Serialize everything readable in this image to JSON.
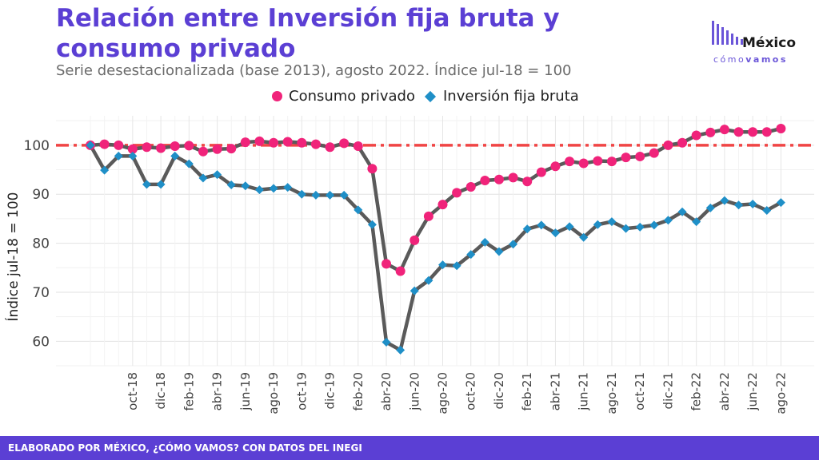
{
  "header": {
    "title": "Relación entre Inversión fija bruta y consumo privado",
    "subtitle": "Serie desestacionalizada (base 2013), agosto 2022. Índice jul-18 = 100"
  },
  "logo": {
    "main": "México",
    "sub_light": "cómo",
    "sub_bold": "vamos"
  },
  "footer": {
    "text": "ELABORADO POR MÉXICO, ¿CÓMO VAMOS? CON DATOS DEL INEGI"
  },
  "colors": {
    "title": "#5b3fd4",
    "consumo": "#f0237a",
    "inversion": "#1f8fc7",
    "line": "#5a5a5a",
    "reference": "#f04545",
    "footer": "#5b3fd4"
  },
  "chart_data": {
    "type": "line",
    "ylabel": "Índice jul-18 = 100",
    "ylim": [
      55,
      106
    ],
    "yticks": [
      60,
      70,
      80,
      90,
      100
    ],
    "reference_line": 100,
    "grid": true,
    "legend_position": "top",
    "x": [
      "jul-18",
      "ago-18",
      "sep-18",
      "oct-18",
      "nov-18",
      "dic-18",
      "ene-19",
      "feb-19",
      "mar-19",
      "abr-19",
      "may-19",
      "jun-19",
      "jul-19",
      "ago-19",
      "sep-19",
      "oct-19",
      "nov-19",
      "dic-19",
      "ene-20",
      "feb-20",
      "mar-20",
      "abr-20",
      "may-20",
      "jun-20",
      "jul-20",
      "ago-20",
      "sep-20",
      "oct-20",
      "nov-20",
      "dic-20",
      "ene-21",
      "feb-21",
      "mar-21",
      "abr-21",
      "may-21",
      "jun-21",
      "jul-21",
      "ago-21",
      "sep-21",
      "oct-21",
      "nov-21",
      "dic-21",
      "ene-22",
      "feb-22",
      "mar-22",
      "abr-22",
      "may-22",
      "jun-22",
      "jul-22",
      "ago-22"
    ],
    "x_tick_labels": [
      "oct-18",
      "dic-18",
      "feb-19",
      "abr-19",
      "jun-19",
      "ago-19",
      "oct-19",
      "dic-19",
      "feb-20",
      "abr-20",
      "jun-20",
      "ago-20",
      "oct-20",
      "dic-20",
      "feb-21",
      "abr-21",
      "jun-21",
      "ago-21",
      "oct-21",
      "dic-21",
      "feb-22",
      "abr-22",
      "jun-22",
      "ago-22"
    ],
    "series": [
      {
        "name": "Consumo privado",
        "marker": "circle",
        "values": [
          100.0,
          100.2,
          100.0,
          99.2,
          99.6,
          99.4,
          99.8,
          99.9,
          98.7,
          99.2,
          99.3,
          100.6,
          100.8,
          100.5,
          100.7,
          100.5,
          100.2,
          99.6,
          100.4,
          99.8,
          95.2,
          75.8,
          74.3,
          80.6,
          85.5,
          87.9,
          90.3,
          91.5,
          92.8,
          93.0,
          93.4,
          92.6,
          94.5,
          95.7,
          96.7,
          96.3,
          96.8,
          96.7,
          97.5,
          97.7,
          98.4,
          100.0,
          100.5,
          102.0,
          102.6,
          103.2,
          102.7,
          102.7,
          102.7,
          103.4
        ]
      },
      {
        "name": "Inversión fija bruta",
        "marker": "diamond",
        "values": [
          100.0,
          94.9,
          97.8,
          97.8,
          92.0,
          92.0,
          97.8,
          96.2,
          93.3,
          94.0,
          91.9,
          91.7,
          90.9,
          91.2,
          91.4,
          90.0,
          89.8,
          89.8,
          89.8,
          86.8,
          83.8,
          59.8,
          58.2,
          70.3,
          72.4,
          75.6,
          75.4,
          77.7,
          80.2,
          78.3,
          79.8,
          82.9,
          83.7,
          82.1,
          83.4,
          81.2,
          83.8,
          84.4,
          83.0,
          83.3,
          83.7,
          84.7,
          86.4,
          84.4,
          87.2,
          88.7,
          87.8,
          88.0,
          86.7,
          88.3
        ]
      }
    ]
  }
}
